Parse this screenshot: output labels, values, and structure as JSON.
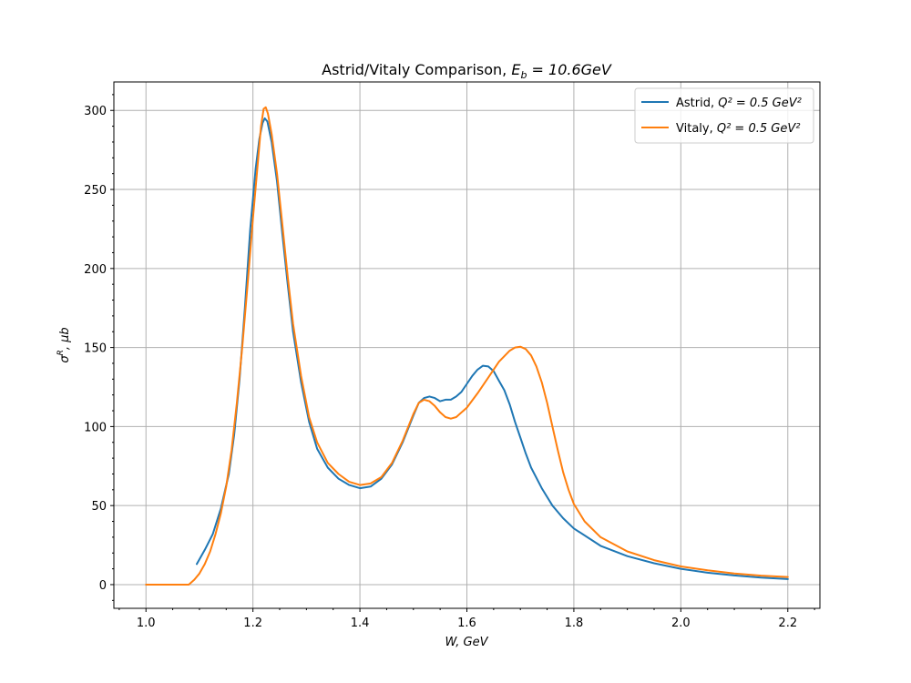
{
  "chart_data": {
    "type": "line",
    "title_prefix": "Astrid/Vitaly Comparison, ",
    "title_math": "E",
    "title_math_sub": "b",
    "title_math_rest": " = 10.6GeV",
    "xlabel": "W, GeV",
    "ylabel_sigma": "σ",
    "ylabel_sup": "R",
    "ylabel_rest": ", μb",
    "xlim": [
      0.94,
      2.26
    ],
    "ylim": [
      -15,
      318
    ],
    "grid": true,
    "legend_position": "upper right",
    "x_ticks": [
      1.0,
      1.2,
      1.4,
      1.6,
      1.8,
      2.0,
      2.2
    ],
    "x_tick_labels": [
      "1.0",
      "1.2",
      "1.4",
      "1.6",
      "1.8",
      "2.0",
      "2.2"
    ],
    "y_ticks": [
      0,
      50,
      100,
      150,
      200,
      250,
      300
    ],
    "y_tick_labels": [
      "0",
      "50",
      "100",
      "150",
      "200",
      "250",
      "300"
    ],
    "series": [
      {
        "name_prefix": "Astrid, ",
        "name_math": "Q² = 0.5 GeV²",
        "color": "#1f77b4",
        "points": [
          [
            1.095,
            13
          ],
          [
            1.11,
            22
          ],
          [
            1.125,
            32
          ],
          [
            1.14,
            48
          ],
          [
            1.155,
            70
          ],
          [
            1.165,
            95
          ],
          [
            1.175,
            130
          ],
          [
            1.185,
            175
          ],
          [
            1.195,
            225
          ],
          [
            1.205,
            263
          ],
          [
            1.212,
            282
          ],
          [
            1.218,
            292
          ],
          [
            1.222,
            295
          ],
          [
            1.227,
            293
          ],
          [
            1.235,
            280
          ],
          [
            1.245,
            255
          ],
          [
            1.255,
            222
          ],
          [
            1.265,
            190
          ],
          [
            1.275,
            160
          ],
          [
            1.29,
            128
          ],
          [
            1.305,
            103
          ],
          [
            1.32,
            86
          ],
          [
            1.34,
            74
          ],
          [
            1.36,
            67
          ],
          [
            1.38,
            63
          ],
          [
            1.4,
            61
          ],
          [
            1.42,
            62
          ],
          [
            1.44,
            67
          ],
          [
            1.46,
            76
          ],
          [
            1.48,
            90
          ],
          [
            1.5,
            107
          ],
          [
            1.51,
            115
          ],
          [
            1.52,
            118
          ],
          [
            1.53,
            119
          ],
          [
            1.54,
            118
          ],
          [
            1.55,
            116
          ],
          [
            1.56,
            117
          ],
          [
            1.57,
            117
          ],
          [
            1.58,
            119
          ],
          [
            1.59,
            122
          ],
          [
            1.6,
            127
          ],
          [
            1.61,
            132
          ],
          [
            1.62,
            136
          ],
          [
            1.63,
            138.5
          ],
          [
            1.64,
            138
          ],
          [
            1.65,
            135
          ],
          [
            1.66,
            129
          ],
          [
            1.67,
            123
          ],
          [
            1.68,
            114
          ],
          [
            1.69,
            103
          ],
          [
            1.7,
            93
          ],
          [
            1.71,
            83
          ],
          [
            1.72,
            74
          ],
          [
            1.74,
            61
          ],
          [
            1.76,
            50
          ],
          [
            1.78,
            42
          ],
          [
            1.8,
            35.5
          ],
          [
            1.85,
            24.5
          ],
          [
            1.9,
            18
          ],
          [
            1.95,
            13.5
          ],
          [
            2.0,
            10
          ],
          [
            2.05,
            7.5
          ],
          [
            2.1,
            5.8
          ],
          [
            2.15,
            4.5
          ],
          [
            2.2,
            3.5
          ]
        ]
      },
      {
        "name_prefix": "Vitaly, ",
        "name_math": "Q² = 0.5 GeV²",
        "color": "#ff7f0e",
        "points": [
          [
            1.0,
            0
          ],
          [
            1.04,
            0
          ],
          [
            1.08,
            0
          ],
          [
            1.09,
            3
          ],
          [
            1.1,
            7
          ],
          [
            1.11,
            13
          ],
          [
            1.12,
            21
          ],
          [
            1.13,
            32
          ],
          [
            1.14,
            45
          ],
          [
            1.15,
            62
          ],
          [
            1.16,
            85
          ],
          [
            1.17,
            115
          ],
          [
            1.18,
            150
          ],
          [
            1.19,
            190
          ],
          [
            1.2,
            232
          ],
          [
            1.21,
            270
          ],
          [
            1.215,
            290
          ],
          [
            1.22,
            301
          ],
          [
            1.224,
            302
          ],
          [
            1.228,
            298
          ],
          [
            1.235,
            285
          ],
          [
            1.245,
            260
          ],
          [
            1.255,
            228
          ],
          [
            1.265,
            195
          ],
          [
            1.275,
            165
          ],
          [
            1.29,
            132
          ],
          [
            1.305,
            106
          ],
          [
            1.32,
            90
          ],
          [
            1.34,
            77
          ],
          [
            1.36,
            70
          ],
          [
            1.38,
            65
          ],
          [
            1.4,
            63
          ],
          [
            1.42,
            64
          ],
          [
            1.44,
            68
          ],
          [
            1.46,
            77
          ],
          [
            1.48,
            91
          ],
          [
            1.5,
            108
          ],
          [
            1.51,
            115
          ],
          [
            1.52,
            117
          ],
          [
            1.53,
            116
          ],
          [
            1.54,
            113
          ],
          [
            1.55,
            109
          ],
          [
            1.56,
            106
          ],
          [
            1.57,
            105
          ],
          [
            1.58,
            106
          ],
          [
            1.6,
            112
          ],
          [
            1.62,
            121
          ],
          [
            1.64,
            131
          ],
          [
            1.66,
            141
          ],
          [
            1.68,
            148
          ],
          [
            1.69,
            150
          ],
          [
            1.7,
            150.5
          ],
          [
            1.71,
            149
          ],
          [
            1.72,
            145
          ],
          [
            1.73,
            138
          ],
          [
            1.74,
            128
          ],
          [
            1.75,
            115
          ],
          [
            1.76,
            100
          ],
          [
            1.77,
            85
          ],
          [
            1.78,
            71
          ],
          [
            1.79,
            60
          ],
          [
            1.8,
            51
          ],
          [
            1.82,
            40
          ],
          [
            1.85,
            30
          ],
          [
            1.9,
            21
          ],
          [
            1.95,
            15.5
          ],
          [
            2.0,
            11.5
          ],
          [
            2.05,
            9
          ],
          [
            2.1,
            7
          ],
          [
            2.15,
            5.7
          ],
          [
            2.2,
            4.8
          ]
        ]
      }
    ]
  }
}
